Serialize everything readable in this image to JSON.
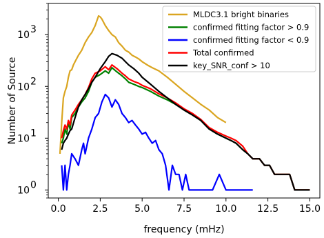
{
  "chart_data": {
    "type": "line",
    "xlabel": "frequency (mHz)",
    "ylabel": "Number of Source",
    "xlim": [
      -0.6,
      15.6
    ],
    "ylim": [
      0.7,
      4000
    ],
    "yscale": "log",
    "grid": false,
    "legend_position": "top-right",
    "x_ticks": [
      {
        "value": 0.0,
        "label": "0.0"
      },
      {
        "value": 2.5,
        "label": "2.5"
      },
      {
        "value": 5.0,
        "label": "5.0"
      },
      {
        "value": 7.5,
        "label": "7.5"
      },
      {
        "value": 10.0,
        "label": "10.0"
      },
      {
        "value": 12.5,
        "label": "12.5"
      },
      {
        "value": 15.0,
        "label": "15.0"
      }
    ],
    "y_ticks": [
      {
        "value": 1,
        "base": "10",
        "exp": "0"
      },
      {
        "value": 10,
        "base": "10",
        "exp": "1"
      },
      {
        "value": 100,
        "base": "10",
        "exp": "2"
      },
      {
        "value": 1000,
        "base": "10",
        "exp": "3"
      }
    ],
    "series": [
      {
        "name": "MLDC3.1 bright binaries",
        "color": "#daa520",
        "x": [
          0.1,
          0.2,
          0.3,
          0.4,
          0.5,
          0.6,
          0.7,
          0.8,
          0.9,
          1.0,
          1.2,
          1.4,
          1.6,
          1.8,
          2.0,
          2.2,
          2.4,
          2.5,
          2.6,
          2.8,
          3.0,
          3.2,
          3.4,
          3.6,
          3.8,
          4.0,
          4.2,
          4.4,
          4.6,
          4.8,
          5.0,
          5.3,
          5.6,
          6.0,
          6.5,
          7.0,
          7.5,
          8.0,
          8.5,
          9.0,
          9.5,
          10.0
        ],
        "values": [
          5,
          20,
          60,
          80,
          100,
          150,
          200,
          210,
          260,
          300,
          400,
          500,
          700,
          900,
          1100,
          1500,
          2300,
          2200,
          2000,
          1500,
          1200,
          1000,
          900,
          700,
          600,
          500,
          460,
          400,
          370,
          340,
          300,
          260,
          230,
          200,
          150,
          110,
          80,
          60,
          45,
          35,
          25,
          20
        ]
      },
      {
        "name": "confirmed fitting factor > 0.9",
        "color": "#008000",
        "x": [
          0.2,
          0.3,
          0.4,
          0.5,
          0.6,
          0.7,
          0.8,
          1.0,
          1.2,
          1.4,
          1.6,
          1.8,
          2.0,
          2.2,
          2.5,
          2.8,
          3.0,
          3.2,
          3.5,
          3.8,
          4.0,
          4.2,
          4.5,
          4.8,
          5.0,
          5.5,
          6.0,
          6.5,
          7.0,
          7.5,
          8.0,
          8.5,
          9.0,
          9.5,
          10.0,
          10.3,
          10.6,
          11.0,
          11.3,
          11.6,
          12.0,
          12.3,
          12.6,
          12.9,
          13.2,
          13.5,
          13.8,
          14.1,
          14.4,
          14.7,
          15.0
        ],
        "values": [
          8,
          10,
          15,
          12,
          20,
          15,
          25,
          30,
          40,
          50,
          60,
          80,
          120,
          150,
          170,
          200,
          180,
          230,
          190,
          160,
          140,
          120,
          110,
          100,
          95,
          80,
          65,
          55,
          45,
          35,
          28,
          22,
          15,
          12,
          10,
          9,
          8,
          6,
          5,
          4,
          4,
          3,
          3,
          2,
          2,
          2,
          2,
          1,
          1,
          1,
          1
        ]
      },
      {
        "name": "confirmed fitting factor < 0.9",
        "color": "#0000ff",
        "x": [
          0.2,
          0.3,
          0.4,
          0.5,
          0.6,
          0.7,
          0.8,
          1.0,
          1.2,
          1.4,
          1.5,
          1.6,
          1.8,
          2.0,
          2.2,
          2.4,
          2.6,
          2.8,
          3.0,
          3.2,
          3.4,
          3.6,
          3.8,
          4.0,
          4.2,
          4.4,
          4.6,
          4.8,
          5.0,
          5.2,
          5.4,
          5.6,
          5.8,
          6.0,
          6.2,
          6.4,
          6.6,
          6.8,
          7.0,
          7.2,
          7.4,
          7.6,
          7.8,
          8.0,
          8.4,
          8.8,
          9.2,
          9.6,
          10.0,
          10.4,
          10.8,
          11.2,
          11.6
        ],
        "values": [
          3,
          1,
          3,
          1,
          2,
          3,
          5,
          4,
          3,
          6,
          8,
          5,
          10,
          15,
          25,
          30,
          50,
          70,
          60,
          40,
          55,
          45,
          30,
          25,
          20,
          22,
          18,
          15,
          12,
          13,
          10,
          8,
          9,
          6,
          5,
          3,
          1,
          3,
          2,
          2,
          1,
          2,
          1,
          1,
          1,
          1,
          1,
          2,
          1,
          1,
          1,
          1,
          1
        ]
      },
      {
        "name": " Total confirmed",
        "color": "#ff0000",
        "x": [
          0.2,
          0.3,
          0.4,
          0.5,
          0.6,
          0.7,
          0.8,
          1.0,
          1.2,
          1.4,
          1.6,
          1.8,
          2.0,
          2.2,
          2.5,
          2.8,
          3.0,
          3.2,
          3.5,
          3.8,
          4.0,
          4.2,
          4.5,
          4.8,
          5.0,
          5.5,
          6.0,
          6.5,
          7.0,
          7.5,
          8.0,
          8.5,
          9.0,
          9.5,
          10.0,
          10.3,
          10.6,
          11.0,
          11.3,
          11.6,
          12.0,
          12.3,
          12.6,
          12.9,
          13.2,
          13.5,
          13.8,
          14.1,
          14.4,
          14.7,
          15.0
        ],
        "values": [
          10,
          14,
          18,
          15,
          22,
          18,
          28,
          35,
          45,
          55,
          70,
          95,
          140,
          180,
          200,
          240,
          210,
          260,
          220,
          180,
          160,
          140,
          125,
          115,
          105,
          90,
          72,
          60,
          48,
          37,
          30,
          23,
          16,
          13,
          11,
          10,
          9,
          7,
          5,
          4,
          4,
          3,
          3,
          2,
          2,
          2,
          2,
          1,
          1,
          1,
          1
        ]
      },
      {
        "name": " key_SNR_conf > 10",
        "color": "#000000",
        "x": [
          0.2,
          0.3,
          0.4,
          0.5,
          0.6,
          0.7,
          0.8,
          1.0,
          1.2,
          1.4,
          1.6,
          1.8,
          2.0,
          2.2,
          2.5,
          2.8,
          3.0,
          3.2,
          3.5,
          3.8,
          4.0,
          4.2,
          4.5,
          4.8,
          5.0,
          5.5,
          6.0,
          6.5,
          7.0,
          7.5,
          8.0,
          8.5,
          9.0,
          9.5,
          10.0,
          10.3,
          10.6,
          11.0,
          11.3,
          11.6,
          12.0,
          12.3,
          12.6,
          12.9,
          13.2,
          13.5,
          13.8,
          14.1,
          14.4,
          14.7,
          15.0
        ],
        "values": [
          6,
          8,
          9,
          10,
          12,
          14,
          15,
          25,
          40,
          55,
          70,
          90,
          120,
          150,
          220,
          300,
          380,
          430,
          400,
          350,
          300,
          260,
          220,
          180,
          150,
          110,
          80,
          60,
          45,
          35,
          28,
          22,
          15,
          12,
          10,
          9,
          8,
          6,
          5,
          4,
          4,
          3,
          3,
          2,
          2,
          2,
          2,
          1,
          1,
          1,
          1
        ]
      }
    ]
  }
}
